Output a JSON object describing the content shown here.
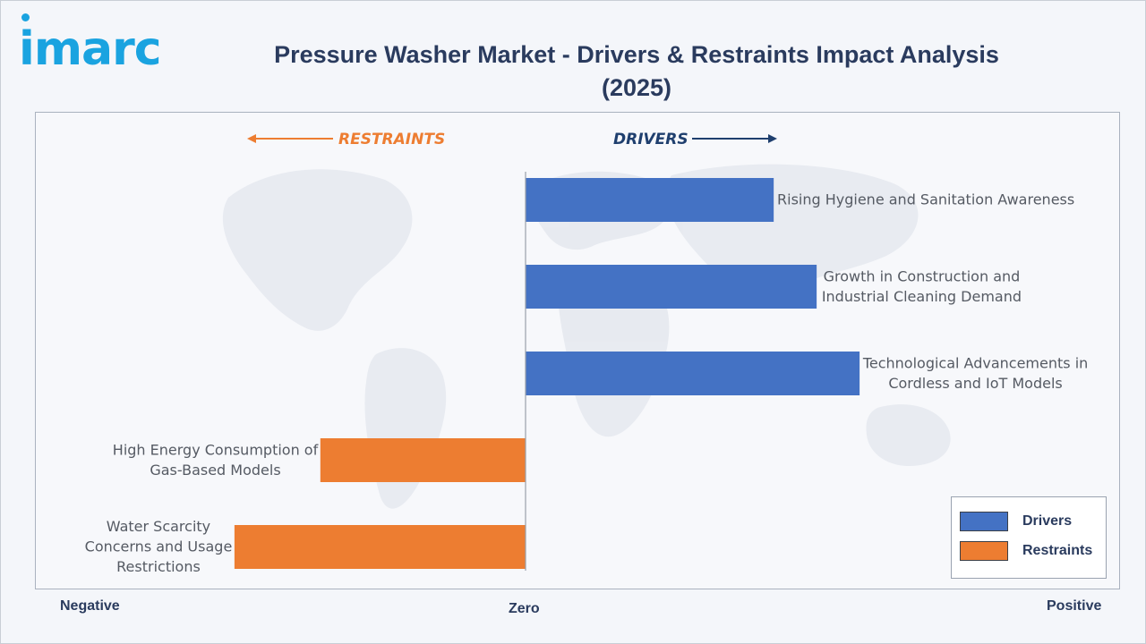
{
  "brand": {
    "logo_text": "imarc"
  },
  "colors": {
    "drivers": "#4472c4",
    "restraints": "#ed7d31",
    "title": "#2a3b5e",
    "restraints_header": "#ed7d31",
    "drivers_header": "#1f3f6e"
  },
  "chart_data": {
    "type": "bar",
    "orientation": "horizontal",
    "title": "Pressure Washer Market - Drivers & Restraints Impact Analysis (2025)",
    "title_lines": [
      "Pressure Washer Market - Drivers & Restraints Impact Analysis",
      "(2025)"
    ],
    "headers": {
      "restraints": "RESTRAINTS",
      "drivers": "DRIVERS"
    },
    "axis_labels": {
      "negative": "Negative",
      "zero": "Zero",
      "positive": "Positive"
    },
    "xlim": [
      -1,
      1
    ],
    "grid": false,
    "legend_position": "bottom-right",
    "series": [
      {
        "name": "Drivers",
        "color": "#4472c4"
      },
      {
        "name": "Restraints",
        "color": "#ed7d31"
      }
    ],
    "items": [
      {
        "label_lines": [
          "Rising Hygiene and Sanitation Awareness"
        ],
        "value": 0.52,
        "series": "Drivers"
      },
      {
        "label_lines": [
          "Growth in Construction and",
          "Industrial Cleaning Demand"
        ],
        "value": 0.61,
        "series": "Drivers"
      },
      {
        "label_lines": [
          "Technological Advancements in",
          "Cordless and IoT Models"
        ],
        "value": 0.7,
        "series": "Drivers"
      },
      {
        "label_lines": [
          "High Energy Consumption of",
          "Gas-Based Models"
        ],
        "value": -0.43,
        "series": "Restraints"
      },
      {
        "label_lines": [
          "Water Scarcity",
          "Concerns and Usage",
          "Restrictions"
        ],
        "value": -0.61,
        "series": "Restraints"
      }
    ]
  }
}
